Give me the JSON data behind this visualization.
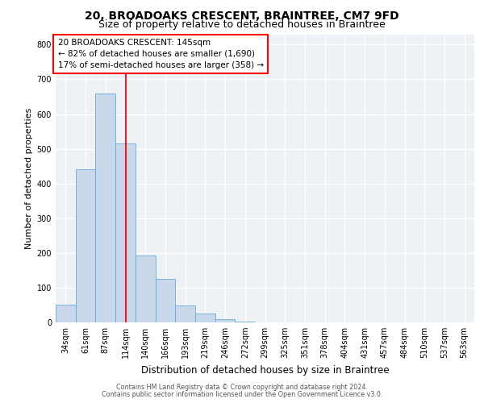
{
  "title1": "20, BROADOAKS CRESCENT, BRAINTREE, CM7 9FD",
  "title2": "Size of property relative to detached houses in Braintree",
  "xlabel": "Distribution of detached houses by size in Braintree",
  "ylabel": "Number of detached properties",
  "categories": [
    "34sqm",
    "61sqm",
    "87sqm",
    "114sqm",
    "140sqm",
    "166sqm",
    "193sqm",
    "219sqm",
    "246sqm",
    "272sqm",
    "299sqm",
    "325sqm",
    "351sqm",
    "378sqm",
    "404sqm",
    "431sqm",
    "457sqm",
    "484sqm",
    "510sqm",
    "537sqm",
    "563sqm"
  ],
  "values": [
    50,
    440,
    660,
    515,
    193,
    125,
    48,
    25,
    10,
    2,
    0,
    0,
    0,
    0,
    0,
    0,
    0,
    0,
    0,
    0,
    0
  ],
  "bar_color": "#c8d8ea",
  "bar_edge_color": "#6aaad4",
  "annotation_text": "20 BROADOAKS CRESCENT: 145sqm\n← 82% of detached houses are smaller (1,690)\n17% of semi-detached houses are larger (358) →",
  "annotation_box_color": "white",
  "annotation_box_edge_color": "red",
  "vline_color": "red",
  "vline_pos": 3.5,
  "ylim": [
    0,
    830
  ],
  "yticks": [
    0,
    100,
    200,
    300,
    400,
    500,
    600,
    700,
    800
  ],
  "plot_bg_color": "#eef2f7",
  "fig_bg_color": "#ffffff",
  "footer1": "Contains HM Land Registry data © Crown copyright and database right 2024.",
  "footer2": "Contains public sector information licensed under the Open Government Licence v3.0.",
  "title1_fontsize": 10,
  "title2_fontsize": 9,
  "ylabel_fontsize": 8,
  "xlabel_fontsize": 8.5,
  "tick_fontsize": 7,
  "ann_fontsize": 7.5,
  "footer_fontsize": 5.8
}
